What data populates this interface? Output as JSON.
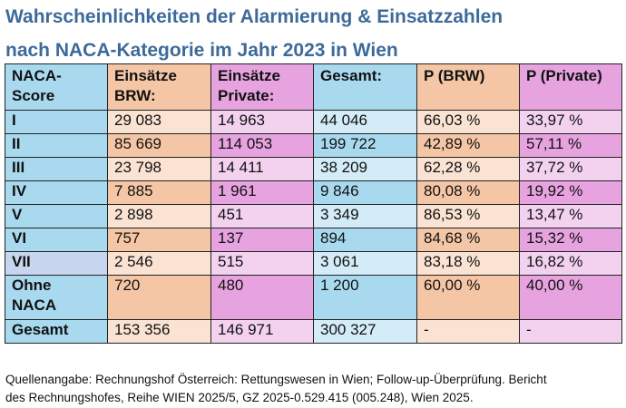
{
  "title": {
    "line1": "Wahrscheinlichkeiten der Alarmierung & Einsatzzahlen",
    "line2": "nach NACA-Kategorie im Jahr 2023 in Wien"
  },
  "table": {
    "headers": {
      "naca_line1": "NACA-",
      "naca_line2": "Score",
      "brw_line1": "Einsätze",
      "brw_line2": "BRW:",
      "private_line1": "Einsätze",
      "private_line2": "Private:",
      "total": "Gesamt:",
      "p_brw": "P (BRW)",
      "p_private": "P (Private)"
    },
    "rows": [
      {
        "score": "I",
        "brw": "29 083",
        "private": "14 963",
        "total": "44 046",
        "p_brw": "66,03 %",
        "p_private": "33,97 %"
      },
      {
        "score": "II",
        "brw": "85 669",
        "private": "114 053",
        "total": "199 722",
        "p_brw": "42,89 %",
        "p_private": "57,11 %"
      },
      {
        "score": "III",
        "brw": "23 798",
        "private": "14 411",
        "total": "38 209",
        "p_brw": "62,28 %",
        "p_private": "37,72 %"
      },
      {
        "score": "IV",
        "brw": "7 885",
        "private": "1 961",
        "total": "9 846",
        "p_brw": "80,08 %",
        "p_private": "19,92 %"
      },
      {
        "score": "V",
        "brw": "2 898",
        "private": "451",
        "total": "3 349",
        "p_brw": "86,53 %",
        "p_private": "13,47 %"
      },
      {
        "score": "VI",
        "brw": "757",
        "private": "137",
        "total": "894",
        "p_brw": "84,68 %",
        "p_private": "15,32 %"
      },
      {
        "score": "VII",
        "brw": "2 546",
        "private": "515",
        "total": "3 061",
        "p_brw": "83,18 %",
        "p_private": "16,82 %"
      }
    ],
    "ohne": {
      "score_line1": "Ohne",
      "score_line2": "NACA",
      "brw": "720",
      "private": "480",
      "total": "1 200",
      "p_brw": "60,00 %",
      "p_private": "40,00 %"
    },
    "gesamt": {
      "score": "Gesamt",
      "brw": "153 356",
      "private": "146 971",
      "total": "300 327",
      "p_brw": "-",
      "p_private": "-"
    }
  },
  "source": {
    "line1": "Quellenangabe: Rechnungshof Österreich: Rettungswesen in Wien; Follow-up-Überprüfung. Bericht",
    "line2": "des Rechnungshofes, Reihe WIEN 2025/5, GZ 2025-0.529.415 (005.248), Wien 2025."
  },
  "colors": {
    "title": "#3d6a9a",
    "blue": "#a9d9ef",
    "blue_light": "#d4ecf8",
    "orange": "#f5c6a5",
    "orange_light": "#fbe3d3",
    "magenta": "#e7a3e0",
    "magenta_light": "#f3d2f0"
  }
}
